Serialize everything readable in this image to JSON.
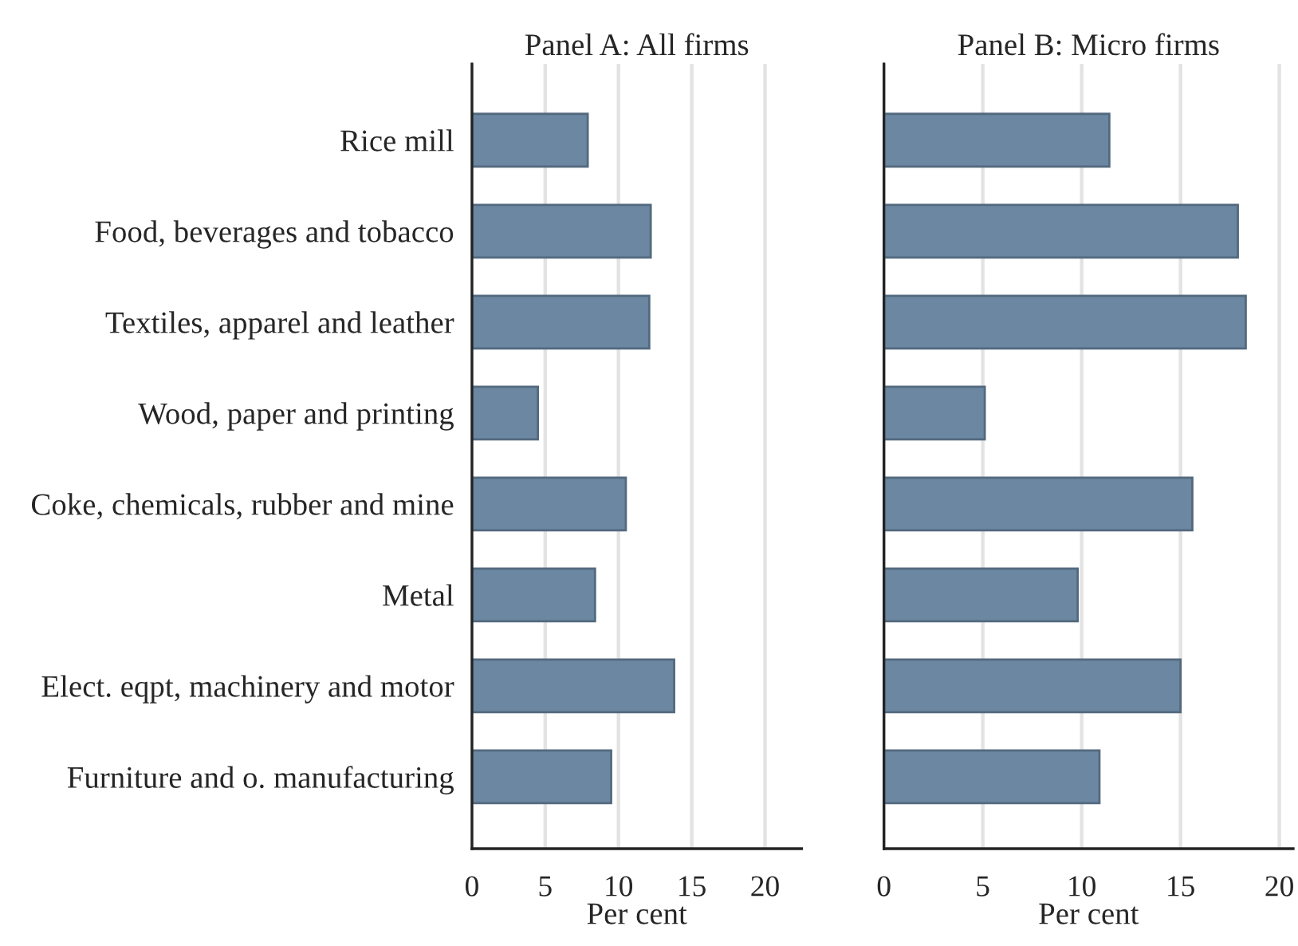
{
  "chart_data": [
    {
      "type": "bar",
      "orientation": "horizontal",
      "title": "Panel A: All firms",
      "xlabel": "Per cent",
      "categories": [
        "Rice mill",
        "Food, beverages and tobacco",
        "Textiles, apparel and leather",
        "Wood, paper and printing",
        "Coke, chemicals, rubber and mine",
        "Metal",
        "Elect. eqpt, machinery and motor",
        "Furniture and o. manufacturing"
      ],
      "values": [
        7.9,
        12.2,
        12.1,
        4.5,
        10.5,
        8.4,
        13.8,
        9.5
      ],
      "color": "#6b87a2",
      "xlim": [
        0,
        22.5
      ],
      "xticks": [
        0,
        5,
        10,
        15,
        20
      ],
      "grid": "x"
    },
    {
      "type": "bar",
      "orientation": "horizontal",
      "title": "Panel B: Micro firms",
      "xlabel": "Per cent",
      "categories": [
        null,
        null,
        null,
        null,
        null,
        null,
        null,
        null
      ],
      "values": [
        11.4,
        17.9,
        18.3,
        5.1,
        15.6,
        9.8,
        15.0,
        10.9
      ],
      "color": "#6b87a2",
      "xlim": [
        0,
        20.7
      ],
      "xticks": [
        0,
        5,
        10,
        15,
        20
      ],
      "grid": "x",
      "tick_labels": "x"
    }
  ]
}
